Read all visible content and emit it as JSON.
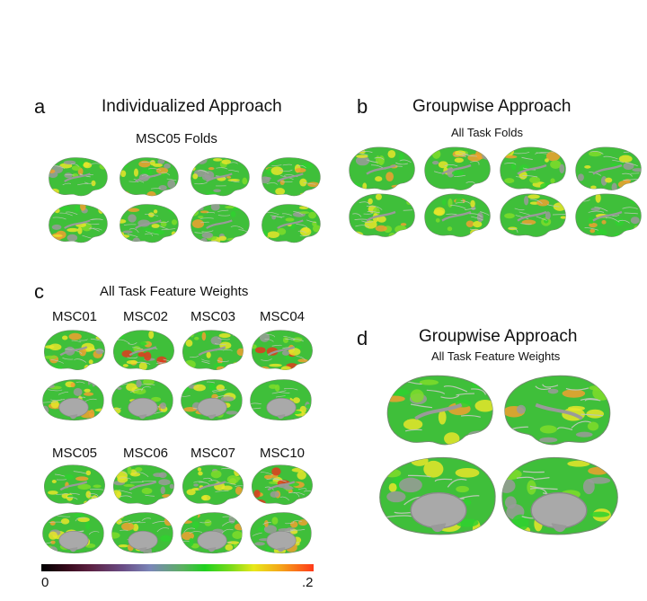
{
  "panels": {
    "a": {
      "letter": "a",
      "title": "Individualized Approach",
      "subtitle": "MSC05 Folds"
    },
    "b": {
      "letter": "b",
      "title": "Groupwise Approach",
      "subtitle": "All Task Folds"
    },
    "c": {
      "letter": "c",
      "title": "All Task Feature Weights",
      "subjects_row1": [
        "MSC01",
        "MSC02",
        "MSC03",
        "MSC04"
      ],
      "subjects_row2": [
        "MSC05",
        "MSC06",
        "MSC07",
        "MSC10"
      ]
    },
    "d": {
      "letter": "d",
      "title": "Groupwise Approach",
      "subtitle": "All Task Feature Weights"
    }
  },
  "colorbar": {
    "min_label": "0",
    "max_label": ".2"
  },
  "colors": {
    "base_green": "#3fbf3a",
    "yellow": "#e6e52a",
    "orange": "#f0a030",
    "red": "#e23a1e",
    "gray": "#9a9a9a"
  }
}
